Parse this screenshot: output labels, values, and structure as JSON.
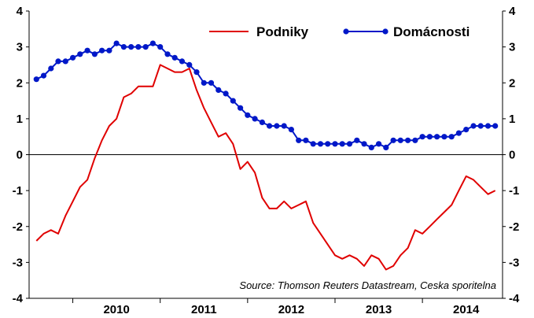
{
  "chart_data": {
    "type": "line",
    "ylim": [
      -4,
      4
    ],
    "yticks": [
      "4",
      "3",
      "2",
      "1",
      "0",
      "-1",
      "-2",
      "-3",
      "-4"
    ],
    "year_labels": [
      "2010",
      "2011",
      "2012",
      "2013",
      "2014"
    ],
    "xlim": [
      "2009-07",
      "2014-12"
    ],
    "grid": false,
    "legend_position": "top-right",
    "source": "Source: Thomson Reuters Datastream, Ceska sporitelna",
    "series": [
      {
        "name": "Podniky",
        "color": "#e00000",
        "marker": false,
        "x": [
          "2009-08",
          "2009-09",
          "2009-10",
          "2009-11",
          "2009-12",
          "2010-01",
          "2010-02",
          "2010-03",
          "2010-04",
          "2010-05",
          "2010-06",
          "2010-07",
          "2010-08",
          "2010-09",
          "2010-10",
          "2010-11",
          "2010-12",
          "2011-01",
          "2011-02",
          "2011-03",
          "2011-04",
          "2011-05",
          "2011-06",
          "2011-07",
          "2011-08",
          "2011-09",
          "2011-10",
          "2011-11",
          "2011-12",
          "2012-01",
          "2012-02",
          "2012-03",
          "2012-04",
          "2012-05",
          "2012-06",
          "2012-07",
          "2012-08",
          "2012-09",
          "2012-10",
          "2012-11",
          "2012-12",
          "2013-01",
          "2013-02",
          "2013-03",
          "2013-04",
          "2013-05",
          "2013-06",
          "2013-07",
          "2013-08",
          "2013-09",
          "2013-10",
          "2013-11",
          "2013-12",
          "2014-01",
          "2014-02",
          "2014-03",
          "2014-04",
          "2014-05",
          "2014-06",
          "2014-07",
          "2014-08",
          "2014-09",
          "2014-10",
          "2014-11"
        ],
        "values": [
          -2.4,
          -2.2,
          -2.1,
          -2.2,
          -1.7,
          -1.3,
          -0.9,
          -0.7,
          -0.1,
          0.4,
          0.8,
          1.0,
          1.6,
          1.7,
          1.9,
          1.9,
          1.9,
          2.5,
          2.4,
          2.3,
          2.3,
          2.4,
          1.8,
          1.3,
          0.9,
          0.5,
          0.6,
          0.3,
          -0.4,
          -0.2,
          -0.5,
          -1.2,
          -1.5,
          -1.5,
          -1.3,
          -1.5,
          -1.4,
          -1.3,
          -1.9,
          -2.2,
          -2.5,
          -2.8,
          -2.9,
          -2.8,
          -2.9,
          -3.1,
          -2.8,
          -2.9,
          -3.2,
          -3.1,
          -2.8,
          -2.6,
          -2.1,
          -2.2,
          -2.0,
          -1.8,
          -1.6,
          -1.4,
          -1.0,
          -0.6,
          -0.7,
          -0.9,
          -1.1,
          -1.0
        ]
      },
      {
        "name": "Domácnosti",
        "color": "#0018c8",
        "marker": true,
        "x": [
          "2009-08",
          "2009-09",
          "2009-10",
          "2009-11",
          "2009-12",
          "2010-01",
          "2010-02",
          "2010-03",
          "2010-04",
          "2010-05",
          "2010-06",
          "2010-07",
          "2010-08",
          "2010-09",
          "2010-10",
          "2010-11",
          "2010-12",
          "2011-01",
          "2011-02",
          "2011-03",
          "2011-04",
          "2011-05",
          "2011-06",
          "2011-07",
          "2011-08",
          "2011-09",
          "2011-10",
          "2011-11",
          "2011-12",
          "2012-01",
          "2012-02",
          "2012-03",
          "2012-04",
          "2012-05",
          "2012-06",
          "2012-07",
          "2012-08",
          "2012-09",
          "2012-10",
          "2012-11",
          "2012-12",
          "2013-01",
          "2013-02",
          "2013-03",
          "2013-04",
          "2013-05",
          "2013-06",
          "2013-07",
          "2013-08",
          "2013-09",
          "2013-10",
          "2013-11",
          "2013-12",
          "2014-01",
          "2014-02",
          "2014-03",
          "2014-04",
          "2014-05",
          "2014-06",
          "2014-07",
          "2014-08",
          "2014-09",
          "2014-10",
          "2014-11"
        ],
        "values": [
          2.1,
          2.2,
          2.4,
          2.6,
          2.6,
          2.7,
          2.8,
          2.9,
          2.8,
          2.9,
          2.9,
          3.1,
          3.0,
          3.0,
          3.0,
          3.0,
          3.1,
          3.0,
          2.8,
          2.7,
          2.6,
          2.5,
          2.3,
          2.0,
          2.0,
          1.8,
          1.7,
          1.5,
          1.3,
          1.1,
          1.0,
          0.9,
          0.8,
          0.8,
          0.8,
          0.7,
          0.4,
          0.4,
          0.3,
          0.3,
          0.3,
          0.3,
          0.3,
          0.3,
          0.4,
          0.3,
          0.2,
          0.3,
          0.2,
          0.4,
          0.4,
          0.4,
          0.4,
          0.5,
          0.5,
          0.5,
          0.5,
          0.5,
          0.6,
          0.7,
          0.8,
          0.8,
          0.8,
          0.8
        ]
      }
    ]
  }
}
